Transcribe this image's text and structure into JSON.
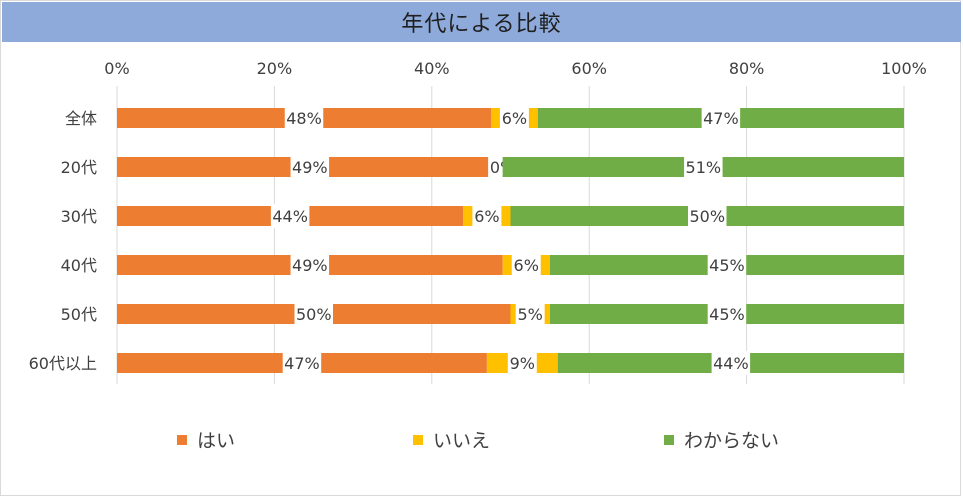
{
  "chart_data": {
    "type": "bar",
    "orientation": "horizontal",
    "stacked": "percent",
    "title": "年代による比較",
    "categories": [
      "全体",
      "20代",
      "30代",
      "40代",
      "50代",
      "60代以上"
    ],
    "series": [
      {
        "name": "はい",
        "color": "#ed7d31",
        "values": [
          48,
          49,
          44,
          49,
          50,
          47
        ],
        "labels": [
          "48%",
          "49%",
          "44%",
          "49%",
          "50%",
          "47%"
        ]
      },
      {
        "name": "いいえ",
        "color": "#ffc000",
        "values": [
          6,
          0,
          6,
          6,
          5,
          9
        ],
        "labels": [
          "6%",
          "0%",
          "6%",
          "6%",
          "5%",
          "9%"
        ]
      },
      {
        "name": "わからない",
        "color": "#70ad47",
        "values": [
          47,
          51,
          50,
          45,
          45,
          44
        ],
        "labels": [
          "47%",
          "51%",
          "50%",
          "45%",
          "45%",
          "44%"
        ]
      }
    ],
    "x_ticks": [
      "0%",
      "20%",
      "40%",
      "60%",
      "80%",
      "100%"
    ],
    "xlim": [
      0,
      100
    ],
    "x_axis_position": "top",
    "grid": true,
    "legend_position": "bottom"
  }
}
